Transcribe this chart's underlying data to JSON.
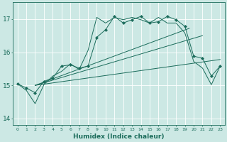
{
  "xlabel": "Humidex (Indice chaleur)",
  "xlim": [
    -0.5,
    23.5
  ],
  "ylim": [
    13.8,
    17.5
  ],
  "yticks": [
    14,
    15,
    16,
    17
  ],
  "xticks": [
    0,
    1,
    2,
    3,
    4,
    5,
    6,
    7,
    8,
    9,
    10,
    11,
    12,
    13,
    14,
    15,
    16,
    17,
    18,
    19,
    20,
    21,
    22,
    23
  ],
  "bg_color": "#cce8e4",
  "line_color": "#1a6b5a",
  "series_main": {
    "x": [
      0,
      1,
      2,
      3,
      4,
      5,
      6,
      7,
      8,
      9,
      10,
      11,
      12,
      13,
      14,
      15,
      16,
      17,
      18,
      19,
      20,
      21,
      22,
      23
    ],
    "y": [
      15.05,
      14.92,
      14.78,
      15.12,
      15.22,
      15.58,
      15.62,
      15.52,
      15.58,
      16.45,
      16.68,
      17.08,
      16.88,
      16.98,
      17.08,
      16.88,
      16.92,
      17.08,
      16.98,
      16.78,
      15.88,
      15.82,
      15.28,
      15.58
    ]
  },
  "series_smooth": {
    "x": [
      0,
      1,
      2,
      3,
      4,
      5,
      6,
      7,
      8,
      9,
      10,
      11,
      12,
      13,
      14,
      15,
      16,
      17,
      18,
      19,
      20,
      21,
      22,
      23
    ],
    "y": [
      15.05,
      14.85,
      14.45,
      15.02,
      15.28,
      15.42,
      15.65,
      15.48,
      16.05,
      17.05,
      16.88,
      17.05,
      16.98,
      17.05,
      16.98,
      16.88,
      17.05,
      16.88,
      16.88,
      16.58,
      15.72,
      15.52,
      15.02,
      15.58
    ]
  },
  "trend_lower": {
    "x": [
      2.0,
      23.0
    ],
    "y": [
      15.0,
      15.78
    ]
  },
  "trend_mid": {
    "x": [
      2.0,
      21.0
    ],
    "y": [
      15.0,
      16.5
    ]
  },
  "trend_upper": {
    "x": [
      2.0,
      19.5
    ],
    "y": [
      15.0,
      16.72
    ]
  }
}
